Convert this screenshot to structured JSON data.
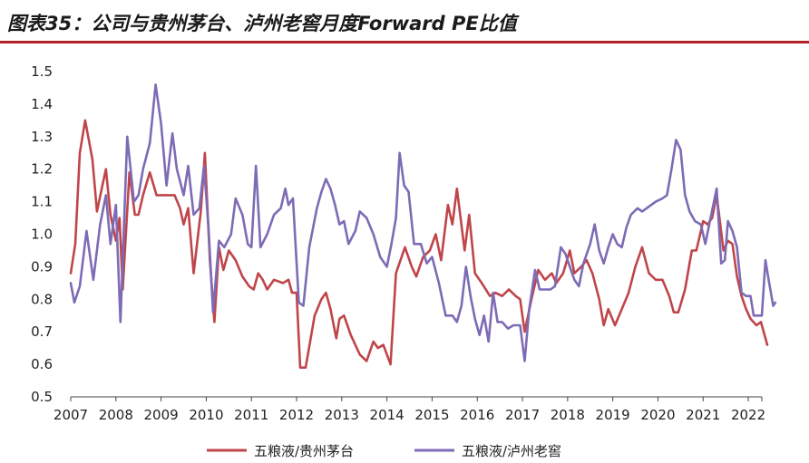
{
  "title": "图表35：公司与贵州茅台、泸州老窖月度Forward PE比值",
  "chart_data": {
    "type": "line",
    "ylim": [
      0.5,
      1.5
    ],
    "yticks": [
      "0.5",
      "0.6",
      "0.7",
      "0.8",
      "0.9",
      "1.0",
      "1.1",
      "1.2",
      "1.3",
      "1.4",
      "1.5"
    ],
    "xlim": [
      2007.0,
      2022.3
    ],
    "xticks": [
      "2007",
      "2008",
      "2009",
      "2010",
      "2011",
      "2012",
      "2013",
      "2014",
      "2015",
      "2016",
      "2017",
      "2018",
      "2019",
      "2020",
      "2021",
      "2022"
    ],
    "legend_position": "bottom",
    "series": [
      {
        "name": "五粮液/贵州茅台",
        "color": "#c0454a",
        "points": [
          [
            2007.0,
            0.88
          ],
          [
            2007.1,
            0.97
          ],
          [
            2007.2,
            1.25
          ],
          [
            2007.32,
            1.35
          ],
          [
            2007.48,
            1.23
          ],
          [
            2007.58,
            1.07
          ],
          [
            2007.7,
            1.15
          ],
          [
            2007.78,
            1.2
          ],
          [
            2007.88,
            1.06
          ],
          [
            2008.0,
            0.98
          ],
          [
            2008.08,
            1.05
          ],
          [
            2008.15,
            0.83
          ],
          [
            2008.3,
            1.19
          ],
          [
            2008.42,
            1.06
          ],
          [
            2008.5,
            1.06
          ],
          [
            2008.6,
            1.12
          ],
          [
            2008.75,
            1.19
          ],
          [
            2008.9,
            1.12
          ],
          [
            2009.05,
            1.12
          ],
          [
            2009.2,
            1.12
          ],
          [
            2009.3,
            1.12
          ],
          [
            2009.42,
            1.08
          ],
          [
            2009.5,
            1.03
          ],
          [
            2009.6,
            1.08
          ],
          [
            2009.72,
            0.88
          ],
          [
            2009.88,
            1.07
          ],
          [
            2009.97,
            1.25
          ],
          [
            2010.08,
            0.92
          ],
          [
            2010.18,
            0.73
          ],
          [
            2010.28,
            0.96
          ],
          [
            2010.38,
            0.89
          ],
          [
            2010.5,
            0.95
          ],
          [
            2010.65,
            0.92
          ],
          [
            2010.8,
            0.87
          ],
          [
            2010.95,
            0.84
          ],
          [
            2011.05,
            0.83
          ],
          [
            2011.15,
            0.88
          ],
          [
            2011.25,
            0.86
          ],
          [
            2011.35,
            0.83
          ],
          [
            2011.5,
            0.86
          ],
          [
            2011.7,
            0.85
          ],
          [
            2011.82,
            0.86
          ],
          [
            2011.9,
            0.82
          ],
          [
            2012.0,
            0.82
          ],
          [
            2012.08,
            0.59
          ],
          [
            2012.2,
            0.59
          ],
          [
            2012.4,
            0.75
          ],
          [
            2012.55,
            0.8
          ],
          [
            2012.65,
            0.82
          ],
          [
            2012.75,
            0.77
          ],
          [
            2012.88,
            0.68
          ],
          [
            2012.95,
            0.74
          ],
          [
            2013.05,
            0.75
          ],
          [
            2013.2,
            0.69
          ],
          [
            2013.4,
            0.63
          ],
          [
            2013.55,
            0.61
          ],
          [
            2013.7,
            0.67
          ],
          [
            2013.8,
            0.65
          ],
          [
            2013.92,
            0.66
          ],
          [
            2014.08,
            0.6
          ],
          [
            2014.2,
            0.88
          ],
          [
            2014.4,
            0.96
          ],
          [
            2014.55,
            0.9
          ],
          [
            2014.65,
            0.87
          ],
          [
            2014.8,
            0.93
          ],
          [
            2014.95,
            0.95
          ],
          [
            2015.08,
            1.0
          ],
          [
            2015.2,
            0.92
          ],
          [
            2015.35,
            1.09
          ],
          [
            2015.45,
            1.03
          ],
          [
            2015.55,
            1.14
          ],
          [
            2015.72,
            0.95
          ],
          [
            2015.82,
            1.06
          ],
          [
            2015.95,
            0.88
          ],
          [
            2016.1,
            0.85
          ],
          [
            2016.28,
            0.81
          ],
          [
            2016.4,
            0.82
          ],
          [
            2016.55,
            0.81
          ],
          [
            2016.7,
            0.83
          ],
          [
            2016.85,
            0.81
          ],
          [
            2016.95,
            0.8
          ],
          [
            2017.05,
            0.7
          ],
          [
            2017.2,
            0.8
          ],
          [
            2017.35,
            0.89
          ],
          [
            2017.5,
            0.86
          ],
          [
            2017.65,
            0.88
          ],
          [
            2017.75,
            0.85
          ],
          [
            2017.9,
            0.88
          ],
          [
            2018.05,
            0.95
          ],
          [
            2018.15,
            0.88
          ],
          [
            2018.3,
            0.9
          ],
          [
            2018.42,
            0.92
          ],
          [
            2018.55,
            0.88
          ],
          [
            2018.7,
            0.8
          ],
          [
            2018.8,
            0.72
          ],
          [
            2018.9,
            0.77
          ],
          [
            2019.05,
            0.72
          ],
          [
            2019.2,
            0.77
          ],
          [
            2019.35,
            0.82
          ],
          [
            2019.5,
            0.9
          ],
          [
            2019.65,
            0.96
          ],
          [
            2019.8,
            0.88
          ],
          [
            2019.95,
            0.86
          ],
          [
            2020.1,
            0.86
          ],
          [
            2020.25,
            0.81
          ],
          [
            2020.35,
            0.76
          ],
          [
            2020.45,
            0.76
          ],
          [
            2020.6,
            0.83
          ],
          [
            2020.75,
            0.95
          ],
          [
            2020.85,
            0.95
          ],
          [
            2021.0,
            1.04
          ],
          [
            2021.1,
            1.03
          ],
          [
            2021.2,
            1.05
          ],
          [
            2021.3,
            1.12
          ],
          [
            2021.45,
            0.95
          ],
          [
            2021.55,
            0.98
          ],
          [
            2021.65,
            0.97
          ],
          [
            2021.75,
            0.87
          ],
          [
            2021.85,
            0.81
          ],
          [
            2021.95,
            0.77
          ],
          [
            2022.05,
            0.74
          ],
          [
            2022.18,
            0.72
          ],
          [
            2022.28,
            0.73
          ],
          [
            2022.42,
            0.66
          ]
        ]
      },
      {
        "name": "五粮液/泸州老窖",
        "color": "#7d6bb5",
        "points": [
          [
            2007.0,
            0.85
          ],
          [
            2007.08,
            0.79
          ],
          [
            2007.2,
            0.84
          ],
          [
            2007.35,
            1.01
          ],
          [
            2007.5,
            0.86
          ],
          [
            2007.65,
            1.03
          ],
          [
            2007.78,
            1.12
          ],
          [
            2007.88,
            0.97
          ],
          [
            2008.0,
            1.09
          ],
          [
            2008.1,
            0.73
          ],
          [
            2008.25,
            1.3
          ],
          [
            2008.4,
            1.1
          ],
          [
            2008.5,
            1.12
          ],
          [
            2008.6,
            1.2
          ],
          [
            2008.75,
            1.28
          ],
          [
            2008.88,
            1.46
          ],
          [
            2009.0,
            1.34
          ],
          [
            2009.12,
            1.15
          ],
          [
            2009.25,
            1.31
          ],
          [
            2009.35,
            1.2
          ],
          [
            2009.5,
            1.12
          ],
          [
            2009.6,
            1.21
          ],
          [
            2009.72,
            1.06
          ],
          [
            2009.85,
            1.08
          ],
          [
            2009.95,
            1.21
          ],
          [
            2010.05,
            1.02
          ],
          [
            2010.15,
            0.76
          ],
          [
            2010.28,
            0.98
          ],
          [
            2010.4,
            0.96
          ],
          [
            2010.55,
            1.0
          ],
          [
            2010.65,
            1.11
          ],
          [
            2010.8,
            1.06
          ],
          [
            2010.92,
            0.97
          ],
          [
            2011.0,
            0.96
          ],
          [
            2011.1,
            1.21
          ],
          [
            2011.2,
            0.96
          ],
          [
            2011.35,
            1.0
          ],
          [
            2011.5,
            1.06
          ],
          [
            2011.65,
            1.08
          ],
          [
            2011.75,
            1.14
          ],
          [
            2011.82,
            1.09
          ],
          [
            2011.92,
            1.11
          ],
          [
            2012.05,
            0.79
          ],
          [
            2012.15,
            0.78
          ],
          [
            2012.28,
            0.96
          ],
          [
            2012.45,
            1.08
          ],
          [
            2012.55,
            1.13
          ],
          [
            2012.65,
            1.17
          ],
          [
            2012.75,
            1.14
          ],
          [
            2012.85,
            1.09
          ],
          [
            2012.95,
            1.03
          ],
          [
            2013.05,
            1.04
          ],
          [
            2013.15,
            0.97
          ],
          [
            2013.3,
            1.01
          ],
          [
            2013.4,
            1.07
          ],
          [
            2013.55,
            1.05
          ],
          [
            2013.7,
            1.0
          ],
          [
            2013.85,
            0.93
          ],
          [
            2014.0,
            0.9
          ],
          [
            2014.1,
            0.97
          ],
          [
            2014.2,
            1.05
          ],
          [
            2014.28,
            1.25
          ],
          [
            2014.38,
            1.15
          ],
          [
            2014.48,
            1.13
          ],
          [
            2014.6,
            0.97
          ],
          [
            2014.75,
            0.97
          ],
          [
            2014.88,
            0.91
          ],
          [
            2015.0,
            0.93
          ],
          [
            2015.15,
            0.85
          ],
          [
            2015.3,
            0.75
          ],
          [
            2015.45,
            0.75
          ],
          [
            2015.55,
            0.73
          ],
          [
            2015.65,
            0.78
          ],
          [
            2015.75,
            0.9
          ],
          [
            2015.85,
            0.81
          ],
          [
            2015.95,
            0.74
          ],
          [
            2016.05,
            0.69
          ],
          [
            2016.15,
            0.75
          ],
          [
            2016.25,
            0.67
          ],
          [
            2016.35,
            0.82
          ],
          [
            2016.45,
            0.73
          ],
          [
            2016.55,
            0.73
          ],
          [
            2016.68,
            0.71
          ],
          [
            2016.8,
            0.72
          ],
          [
            2016.95,
            0.72
          ],
          [
            2017.05,
            0.61
          ],
          [
            2017.15,
            0.77
          ],
          [
            2017.28,
            0.89
          ],
          [
            2017.38,
            0.83
          ],
          [
            2017.5,
            0.83
          ],
          [
            2017.62,
            0.83
          ],
          [
            2017.72,
            0.84
          ],
          [
            2017.85,
            0.96
          ],
          [
            2017.95,
            0.94
          ],
          [
            2018.05,
            0.9
          ],
          [
            2018.15,
            0.86
          ],
          [
            2018.25,
            0.84
          ],
          [
            2018.35,
            0.91
          ],
          [
            2018.5,
            0.97
          ],
          [
            2018.6,
            1.03
          ],
          [
            2018.7,
            0.95
          ],
          [
            2018.8,
            0.91
          ],
          [
            2018.9,
            0.96
          ],
          [
            2019.0,
            1.0
          ],
          [
            2019.1,
            0.97
          ],
          [
            2019.2,
            0.96
          ],
          [
            2019.3,
            1.02
          ],
          [
            2019.4,
            1.06
          ],
          [
            2019.55,
            1.08
          ],
          [
            2019.65,
            1.07
          ],
          [
            2019.75,
            1.08
          ],
          [
            2019.85,
            1.09
          ],
          [
            2019.95,
            1.1
          ],
          [
            2020.1,
            1.11
          ],
          [
            2020.2,
            1.12
          ],
          [
            2020.3,
            1.2
          ],
          [
            2020.4,
            1.29
          ],
          [
            2020.5,
            1.26
          ],
          [
            2020.6,
            1.12
          ],
          [
            2020.7,
            1.07
          ],
          [
            2020.82,
            1.04
          ],
          [
            2020.95,
            1.03
          ],
          [
            2021.05,
            0.97
          ],
          [
            2021.15,
            1.04
          ],
          [
            2021.3,
            1.14
          ],
          [
            2021.4,
            0.91
          ],
          [
            2021.48,
            0.92
          ],
          [
            2021.55,
            1.04
          ],
          [
            2021.65,
            1.01
          ],
          [
            2021.75,
            0.96
          ],
          [
            2021.85,
            0.82
          ],
          [
            2021.95,
            0.81
          ],
          [
            2022.05,
            0.81
          ],
          [
            2022.12,
            0.75
          ],
          [
            2022.2,
            0.75
          ],
          [
            2022.3,
            0.75
          ],
          [
            2022.38,
            0.92
          ],
          [
            2022.45,
            0.86
          ],
          [
            2022.55,
            0.78
          ],
          [
            2022.6,
            0.79
          ]
        ]
      }
    ]
  }
}
